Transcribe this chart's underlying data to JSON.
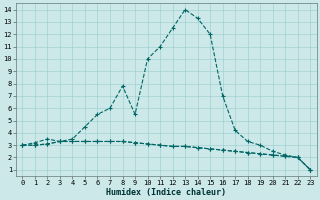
{
  "xlabel": "Humidex (Indice chaleur)",
  "bg_color": "#cce8e8",
  "grid_color": "#99cccc",
  "line_color": "#006666",
  "xlim": [
    -0.5,
    23.5
  ],
  "ylim": [
    0.5,
    14.5
  ],
  "xticks": [
    0,
    1,
    2,
    3,
    4,
    5,
    6,
    7,
    8,
    9,
    10,
    11,
    12,
    13,
    14,
    15,
    16,
    17,
    18,
    19,
    20,
    21,
    22,
    23
  ],
  "yticks": [
    1,
    2,
    3,
    4,
    5,
    6,
    7,
    8,
    9,
    10,
    11,
    12,
    13,
    14
  ],
  "series1_x": [
    0,
    1,
    2,
    3,
    4,
    5,
    6,
    7,
    8,
    9,
    10,
    11,
    12,
    13,
    14,
    15,
    16,
    17,
    18,
    19,
    20,
    21,
    22,
    23
  ],
  "series1_y": [
    3.0,
    3.0,
    3.1,
    3.3,
    3.3,
    3.3,
    3.3,
    3.3,
    3.3,
    3.2,
    3.1,
    3.0,
    2.9,
    2.9,
    2.8,
    2.7,
    2.6,
    2.5,
    2.4,
    2.3,
    2.2,
    2.1,
    2.0,
    1.0
  ],
  "series2_x": [
    0,
    1,
    2,
    3,
    4,
    5,
    6,
    7,
    8,
    9,
    10,
    11,
    12,
    13,
    14,
    15,
    16,
    17,
    18,
    19,
    20,
    21,
    22,
    23
  ],
  "series2_y": [
    3.0,
    3.0,
    3.1,
    3.3,
    3.3,
    3.3,
    3.3,
    3.3,
    3.3,
    3.2,
    3.1,
    3.0,
    2.9,
    2.9,
    2.8,
    2.7,
    2.6,
    2.5,
    2.4,
    2.3,
    2.2,
    2.1,
    2.0,
    1.0
  ],
  "series3_x": [
    0,
    1,
    2,
    3,
    4,
    5,
    6,
    7,
    8,
    9,
    10,
    11,
    12,
    13,
    14,
    15,
    16,
    17,
    18,
    19,
    20,
    21,
    22,
    23
  ],
  "series3_y": [
    3.0,
    3.2,
    3.5,
    3.3,
    3.5,
    4.5,
    5.5,
    6.0,
    7.8,
    5.5,
    10.0,
    11.0,
    12.5,
    14.0,
    13.3,
    12.0,
    7.0,
    4.2,
    3.3,
    3.0,
    2.5,
    2.2,
    2.0,
    1.0
  ],
  "xlabel_fontsize": 6,
  "tick_fontsize": 5
}
